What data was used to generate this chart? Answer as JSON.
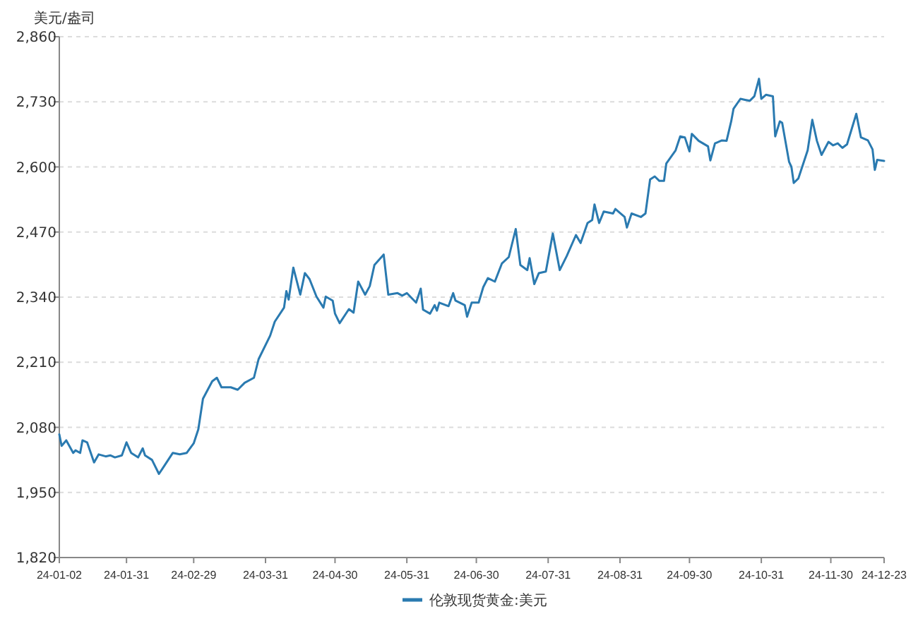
{
  "chart_data": {
    "type": "line",
    "ylabel": "美元/盎司",
    "legend": "bottom",
    "grid": "y",
    "marker": "none",
    "line_style": "solid",
    "xlim": [
      "--01-02",
      "--12-23"
    ],
    "xticks": [
      {
        "value": "--01-02",
        "label": "24-01-02"
      },
      {
        "value": "--01-31",
        "label": "24-01-31"
      },
      {
        "value": "--02-29",
        "label": "24-02-29"
      },
      {
        "value": "--03-31",
        "label": "24-03-31"
      },
      {
        "value": "--04-30",
        "label": "24-04-30"
      },
      {
        "value": "--05-31",
        "label": "24-05-31"
      },
      {
        "value": "--06-30",
        "label": "24-06-30"
      },
      {
        "value": "--07-31",
        "label": "24-07-31"
      },
      {
        "value": "--08-31",
        "label": "24-08-31"
      },
      {
        "value": "--09-30",
        "label": "24-09-30"
      },
      {
        "value": "--10-31",
        "label": "24-10-31"
      },
      {
        "value": "--11-30",
        "label": "24-11-30"
      },
      {
        "value": "--12-23",
        "label": "24-12-23"
      }
    ],
    "ylim": [
      1820,
      2860
    ],
    "yticks": [
      {
        "value": 1820,
        "label": "1,820"
      },
      {
        "value": 1950,
        "label": "1,950"
      },
      {
        "value": 2080,
        "label": "2,080"
      },
      {
        "value": 2210,
        "label": "2,210"
      },
      {
        "value": 2340,
        "label": "2,340"
      },
      {
        "value": 2470,
        "label": "2,470"
      },
      {
        "value": 2600,
        "label": "2,600"
      },
      {
        "value": 2730,
        "label": "2,730"
      },
      {
        "value": 2860,
        "label": "2,860"
      }
    ],
    "x": [
      "--01-02",
      "--01-03",
      "--01-05",
      "--01-08",
      "--01-09",
      "--01-11",
      "--01-12",
      "--01-14",
      "--01-17",
      "--01-19",
      "--01-22",
      "--01-24",
      "--01-26",
      "--01-29",
      "--01-31",
      "--02-02",
      "--02-05",
      "--02-07",
      "--02-08",
      "--02-11",
      "--02-14",
      "--02-16",
      "--02-20",
      "--02-23",
      "--02-26",
      "--02-29",
      "--03-02",
      "--03-04",
      "--03-08",
      "--03-10",
      "--03-12",
      "--03-16",
      "--03-19",
      "--03-22",
      "--03-26",
      "--03-28",
      "--04-02",
      "--04-04",
      "--04-08",
      "--04-09",
      "--04-10",
      "--04-12",
      "--04-15",
      "--04-17",
      "--04-19",
      "--04-22",
      "--04-25",
      "--04-26",
      "--04-29",
      "--04-30",
      "--05-02",
      "--05-06",
      "--05-08",
      "--05-10",
      "--05-13",
      "--05-15",
      "--05-17",
      "--05-21",
      "--05-23",
      "--05-27",
      "--05-29",
      "--05-31",
      "--06-04",
      "--06-06",
      "--06-07",
      "--06-10",
      "--06-12",
      "--06-13",
      "--06-14",
      "--06-18",
      "--06-20",
      "--06-21",
      "--06-25",
      "--06-26",
      "--06-28",
      "--07-01",
      "--07-03",
      "--07-05",
      "--07-08",
      "--07-11",
      "--07-14",
      "--07-17",
      "--07-19",
      "--07-22",
      "--07-23",
      "--07-25",
      "--07-27",
      "--07-30",
      "--08-02",
      "--08-05",
      "--08-08",
      "--08-12",
      "--08-14",
      "--08-17",
      "--08-19",
      "--08-20",
      "--08-22",
      "--08-24",
      "--08-28",
      "--08-29",
      "--09-02",
      "--09-03",
      "--09-05",
      "--09-09",
      "--09-11",
      "--09-13",
      "--09-15",
      "--09-17",
      "--09-19",
      "--09-20",
      "--09-24",
      "--09-26",
      "--09-28",
      "--09-30",
      "--10-01",
      "--10-04",
      "--10-08",
      "--10-09",
      "--10-11",
      "--10-14",
      "--10-16",
      "--10-18",
      "--10-19",
      "--10-22",
      "--10-24",
      "--10-26",
      "--10-28",
      "--10-30",
      "--10-31",
      "--11-02",
      "--11-05",
      "--11-06",
      "--11-08",
      "--11-09",
      "--11-12",
      "--11-13",
      "--11-14",
      "--11-16",
      "--11-20",
      "--11-22",
      "--11-24",
      "--11-26",
      "--11-29",
      "--12-01",
      "--12-03",
      "--12-05",
      "--12-07",
      "--12-11",
      "--12-13",
      "--12-16",
      "--12-18",
      "--12-19",
      "--12-20",
      "--12-23"
    ],
    "series": [
      {
        "name": "伦敦现货黄金:美元",
        "color": "#2a7ab0",
        "values": [
          2066,
          2043,
          2054,
          2029,
          2034,
          2029,
          2054,
          2050,
          2010,
          2026,
          2022,
          2024,
          2020,
          2024,
          2050,
          2029,
          2020,
          2038,
          2024,
          2015,
          1987,
          2001,
          2029,
          2026,
          2029,
          2048,
          2076,
          2137,
          2172,
          2179,
          2160,
          2160,
          2155,
          2169,
          2179,
          2216,
          2263,
          2291,
          2319,
          2352,
          2335,
          2399,
          2345,
          2388,
          2376,
          2341,
          2319,
          2341,
          2333,
          2307,
          2288,
          2316,
          2309,
          2371,
          2345,
          2362,
          2404,
          2425,
          2345,
          2348,
          2343,
          2348,
          2329,
          2357,
          2315,
          2307,
          2324,
          2313,
          2329,
          2322,
          2348,
          2333,
          2324,
          2301,
          2329,
          2329,
          2360,
          2378,
          2371,
          2407,
          2420,
          2476,
          2404,
          2394,
          2418,
          2366,
          2388,
          2391,
          2467,
          2394,
          2422,
          2464,
          2448,
          2488,
          2494,
          2525,
          2488,
          2511,
          2507,
          2516,
          2500,
          2479,
          2507,
          2500,
          2507,
          2575,
          2581,
          2572,
          2572,
          2607,
          2633,
          2661,
          2659,
          2631,
          2666,
          2652,
          2641,
          2613,
          2647,
          2653,
          2652,
          2691,
          2716,
          2736,
          2734,
          2732,
          2741,
          2776,
          2736,
          2744,
          2741,
          2661,
          2691,
          2688,
          2610,
          2600,
          2568,
          2577,
          2633,
          2694,
          2652,
          2624,
          2650,
          2643,
          2647,
          2638,
          2645,
          2706,
          2659,
          2653,
          2635,
          2594,
          2614,
          2612
        ]
      }
    ]
  }
}
